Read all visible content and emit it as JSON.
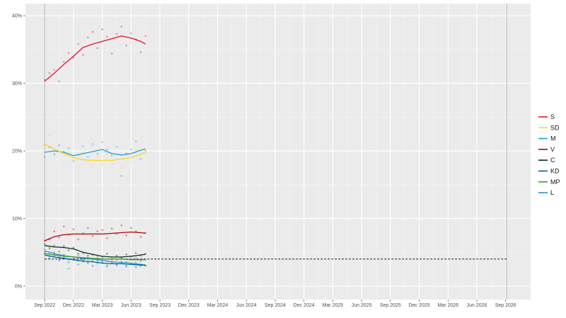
{
  "chart_data": {
    "type": "line",
    "title": "",
    "xlabel": "",
    "ylabel": "",
    "x_unit": "months since Sep 2022",
    "xlim": [
      -2,
      50.6
    ],
    "ylim": [
      -2,
      41.8
    ],
    "y_ticks": [
      0,
      10,
      20,
      30,
      40
    ],
    "y_tick_labels": [
      "0%",
      "10%",
      "20%",
      "30%",
      "40%"
    ],
    "x_ticks": [
      0,
      3,
      6,
      9,
      12,
      15,
      18,
      21,
      24,
      27,
      30,
      33,
      36,
      39,
      42,
      45,
      48
    ],
    "x_tick_labels": [
      "Sep 2022",
      "Dec 2022",
      "Mar 2023",
      "Jun 2023",
      "Sep 2023",
      "Dec 2023",
      "Mar 2024",
      "Jun 2024",
      "Sep 2024",
      "Dec 2024",
      "Mar 2025",
      "Jun 2025",
      "Sep 2025",
      "Dec 2025",
      "Mar 2026",
      "Jun 2026",
      "Sep 2026"
    ],
    "election_lines": [
      0,
      48.1
    ],
    "threshold": 4,
    "grid": true,
    "legend_position": "right",
    "x": [
      0,
      1,
      2,
      3,
      4,
      5,
      6,
      7,
      8,
      9,
      10,
      10.5
    ],
    "point_x": [
      0,
      0.5,
      1,
      1.5,
      2,
      2.5,
      3,
      3.5,
      4,
      4.5,
      5,
      5.5,
      6,
      6.5,
      7,
      7.5,
      8,
      8.5,
      9,
      9.5,
      10,
      10.5
    ],
    "series": [
      {
        "name": "S",
        "color": "#E8112D",
        "values": [
          30.3,
          31.5,
          32.8,
          34.0,
          35.3,
          35.8,
          36.2,
          36.6,
          37.0,
          36.7,
          36.2,
          35.8
        ],
        "points": [
          30.5,
          31.5,
          32.0,
          30.3,
          33.2,
          34.5,
          33.8,
          35.8,
          34.2,
          36.8,
          37.6,
          35.2,
          38.0,
          36.9,
          34.4,
          37.3,
          38.4,
          35.6,
          37.4,
          36.5,
          34.6,
          37.0
        ]
      },
      {
        "name": "SD",
        "color": "#F9D71C",
        "values": [
          21.0,
          20.3,
          19.6,
          19.0,
          18.7,
          18.6,
          18.6,
          18.6,
          18.8,
          19.0,
          19.5,
          19.8
        ],
        "points": [
          20.8,
          22.3,
          19.6,
          20.9,
          18.2,
          19.9,
          18.9,
          17.8,
          19.8,
          18.4,
          17.9,
          19.2,
          18.0,
          19.5,
          18.2,
          18.9,
          17.5,
          19.8,
          18.3,
          20.1,
          19.0,
          19.6
        ]
      },
      {
        "name": "M",
        "color": "#1B9FD8",
        "values": [
          19.8,
          20.0,
          19.8,
          19.3,
          19.6,
          19.9,
          20.2,
          19.6,
          19.4,
          19.6,
          20.1,
          20.3
        ],
        "points": [
          19.1,
          20.5,
          19.5,
          20.8,
          19.9,
          20.4,
          18.5,
          19.4,
          20.7,
          19.1,
          21.0,
          19.6,
          21.3,
          20.2,
          19.3,
          20.6,
          16.3,
          19.6,
          20.2,
          21.4,
          18.8,
          20.0
        ]
      },
      {
        "name": "V",
        "color": "#AF0000",
        "values": [
          6.7,
          7.3,
          7.6,
          7.7,
          7.7,
          7.7,
          7.7,
          7.8,
          7.9,
          8.0,
          7.9,
          7.8
        ],
        "points": [
          6.7,
          6.9,
          8.1,
          7.2,
          8.8,
          7.6,
          8.4,
          6.9,
          7.8,
          8.6,
          7.4,
          8.1,
          8.3,
          7.1,
          8.5,
          7.7,
          9.0,
          7.5,
          8.6,
          8.1,
          7.3,
          7.9
        ]
      },
      {
        "name": "C",
        "color": "#0B2B1E",
        "values": [
          6.0,
          5.8,
          5.7,
          5.5,
          5.0,
          4.7,
          4.4,
          4.3,
          4.3,
          4.4,
          4.6,
          4.7
        ],
        "points": [
          6.2,
          5.6,
          6.0,
          5.1,
          5.9,
          5.3,
          5.7,
          4.8,
          4.9,
          4.5,
          4.6,
          4.1,
          4.3,
          4.8,
          4.0,
          4.5,
          4.2,
          4.7,
          4.4,
          4.9,
          4.5,
          4.8
        ]
      },
      {
        "name": "KD",
        "color": "#005EA1",
        "values": [
          4.6,
          4.3,
          4.1,
          3.9,
          3.7,
          3.6,
          3.4,
          3.3,
          3.3,
          3.2,
          3.1,
          3.1
        ],
        "points": [
          4.8,
          4.1,
          4.5,
          3.8,
          4.2,
          3.5,
          3.9,
          3.2,
          3.6,
          3.4,
          3.0,
          3.7,
          3.5,
          2.9,
          3.4,
          3.1,
          3.6,
          3.0,
          3.3,
          2.8,
          3.2,
          3.0
        ]
      },
      {
        "name": "MP",
        "color": "#3D9B35",
        "values": [
          4.8,
          4.6,
          4.4,
          4.3,
          4.2,
          4.1,
          4.0,
          4.0,
          4.0,
          3.9,
          3.9,
          3.9
        ],
        "points": [
          5.0,
          4.4,
          4.8,
          4.2,
          4.6,
          3.9,
          4.3,
          4.5,
          3.8,
          4.2,
          3.6,
          4.4,
          4.0,
          3.7,
          4.3,
          3.9,
          4.1,
          3.6,
          4.0,
          4.2,
          3.7,
          3.9
        ]
      },
      {
        "name": "L",
        "color": "#2F8FCD",
        "values": [
          5.2,
          4.8,
          4.5,
          4.3,
          4.1,
          4.0,
          3.8,
          3.6,
          3.5,
          3.4,
          3.2,
          3.1
        ],
        "points": [
          5.4,
          4.9,
          5.0,
          4.3,
          4.6,
          2.6,
          4.1,
          3.7,
          3.9,
          3.5,
          3.8,
          3.3,
          3.6,
          3.1,
          3.7,
          3.2,
          3.4,
          2.9,
          3.3,
          3.5,
          2.9,
          3.0
        ]
      }
    ]
  }
}
